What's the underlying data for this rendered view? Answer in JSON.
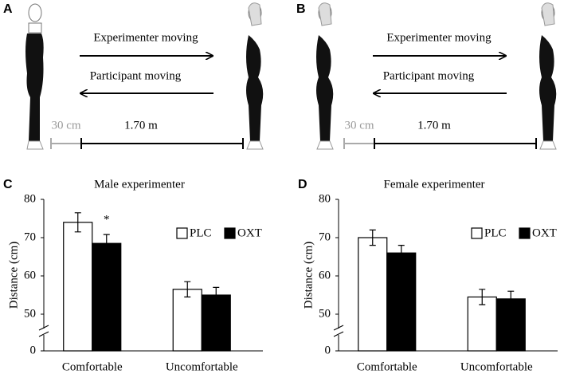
{
  "diagrams": [
    {
      "panel": "A",
      "top_arrow": "Experimenter moving",
      "bottom_arrow": "Participant moving",
      "short_distance": "30 cm",
      "long_distance": "1.70 m"
    },
    {
      "panel": "B",
      "top_arrow": "Experimenter moving",
      "bottom_arrow": "Participant moving",
      "short_distance": "30 cm",
      "long_distance": "1.70 m"
    }
  ],
  "chart_data": [
    {
      "type": "bar",
      "panel": "C",
      "title": "Male experimenter",
      "y_label": "Distance (cm)",
      "categories": [
        "Comfortable",
        "Uncomfortable"
      ],
      "series": [
        {
          "name": "PLC",
          "color": "#ffffff",
          "values": [
            74,
            56.5
          ],
          "errors": [
            2.5,
            2
          ]
        },
        {
          "name": "OXT",
          "color": "#000000",
          "values": [
            68.5,
            55
          ],
          "errors": [
            2.3,
            2
          ]
        }
      ],
      "annotation": "*",
      "ylim": [
        0,
        80
      ],
      "yticks": [
        0,
        50,
        60,
        70,
        80
      ],
      "y_break": [
        0,
        50
      ],
      "grid": false,
      "legend": "upper right"
    },
    {
      "type": "bar",
      "panel": "D",
      "title": "Female experimenter",
      "y_label": "Distance (cm)",
      "categories": [
        "Comfortable",
        "Uncomfortable"
      ],
      "series": [
        {
          "name": "PLC",
          "color": "#ffffff",
          "values": [
            70,
            54.5
          ],
          "errors": [
            2,
            2
          ]
        },
        {
          "name": "OXT",
          "color": "#000000",
          "values": [
            66,
            54
          ],
          "errors": [
            2,
            2
          ]
        }
      ],
      "ylim": [
        0,
        80
      ],
      "yticks": [
        0,
        50,
        60,
        70,
        80
      ],
      "y_break": [
        0,
        50
      ],
      "grid": false,
      "legend": "upper right"
    }
  ]
}
